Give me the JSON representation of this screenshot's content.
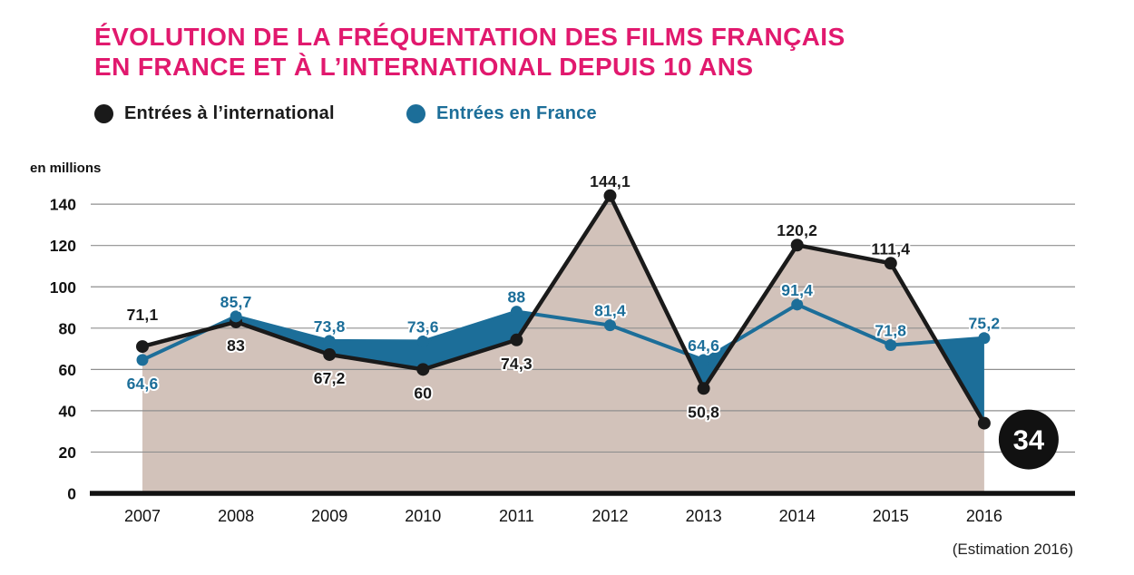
{
  "title": {
    "line1": "ÉVOLUTION DE LA FRÉQUENTATION DES FILMS FRANÇAIS",
    "line2": "EN FRANCE ET À L’INTERNATIONAL DEPUIS 10 ANS"
  },
  "legend": [
    {
      "label": "Entrées à l’international",
      "color": "#1a1a1a"
    },
    {
      "label": "Entrées en France",
      "color": "#1c6e99"
    }
  ],
  "note": "(Estimation 2016)",
  "colors": {
    "title": "#e1196e",
    "international_line": "#1a1a1a",
    "international_area": "#d2c2ba",
    "france_line": "#1c6e99",
    "france_area": "#1c6e99",
    "grid": "#8f8f8f",
    "badge_background": "#111111",
    "badge_text": "#ffffff",
    "background": "#ffffff"
  },
  "chart_data": {
    "type": "line",
    "title": "Évolution de la fréquentation des films français en France et à l’international depuis 10 ans",
    "unit_label": "en millions",
    "categories": [
      "2007",
      "2008",
      "2009",
      "2010",
      "2011",
      "2012",
      "2013",
      "2014",
      "2015",
      "2016"
    ],
    "y_ticks": [
      0,
      20,
      40,
      60,
      80,
      100,
      120,
      140
    ],
    "ylim": [
      0,
      150
    ],
    "grid": true,
    "legend_position": "top",
    "series": [
      {
        "name": "Entrées à l’international",
        "color": "#1a1a1a",
        "area_fill": "#d2c2ba",
        "values": [
          71.1,
          83,
          67.2,
          60,
          74.3,
          144.1,
          50.8,
          120.2,
          111.4,
          34
        ],
        "labels": [
          "71,1",
          "83",
          "67,2",
          "60",
          "74,3",
          "144,1",
          "50,8",
          "120,2",
          "111,4",
          null
        ],
        "label_pos": [
          "above_far",
          "below",
          "below",
          "below",
          "below",
          "above",
          "below",
          "above",
          "above",
          null
        ]
      },
      {
        "name": "Entrées en France",
        "color": "#1c6e99",
        "area_fill": "#1c6e99",
        "values": [
          64.6,
          85.7,
          73.8,
          73.6,
          88,
          81.4,
          64.6,
          91.4,
          71.8,
          75.2
        ],
        "labels": [
          "64,6",
          "85,7",
          "73,8",
          "73,6",
          "88",
          "81,4",
          "64,6",
          "91,4",
          "71,8",
          "75,2"
        ],
        "label_pos": [
          "below",
          "above",
          "above",
          "above",
          "above",
          "above",
          "above",
          "above",
          "above",
          "above"
        ]
      }
    ],
    "badge": {
      "value": "34",
      "series": "Entrées à l’international",
      "category": "2016"
    }
  }
}
